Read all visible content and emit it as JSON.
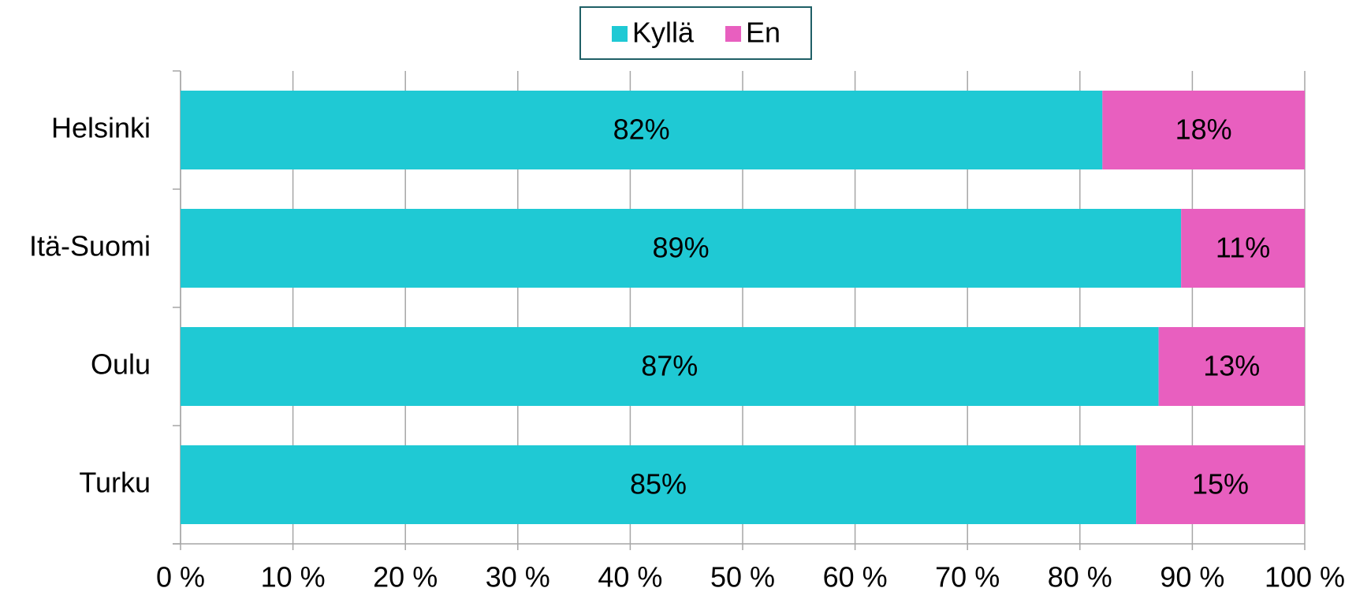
{
  "chart_data": {
    "type": "stacked_bar_horizontal",
    "categories": [
      "Helsinki",
      "Itä-Suomi",
      "Oulu",
      "Turku"
    ],
    "series": [
      {
        "name": "Kyllä",
        "color": "#1fc9d4",
        "values": [
          82,
          89,
          87,
          85
        ],
        "value_labels": [
          "82%",
          "89%",
          "87%",
          "85%"
        ]
      },
      {
        "name": "En",
        "color": "#e85fbf",
        "values": [
          18,
          11,
          13,
          15
        ],
        "value_labels": [
          "18%",
          "11%",
          "13%",
          "15%"
        ]
      }
    ],
    "xlim": [
      0,
      100
    ],
    "xticks": [
      {
        "value": 0,
        "label": "0 %"
      },
      {
        "value": 10,
        "label": "10 %"
      },
      {
        "value": 20,
        "label": "20 %"
      },
      {
        "value": 30,
        "label": "30 %"
      },
      {
        "value": 40,
        "label": "40 %"
      },
      {
        "value": 50,
        "label": "50 %"
      },
      {
        "value": 60,
        "label": "60 %"
      },
      {
        "value": 70,
        "label": "70 %"
      },
      {
        "value": 80,
        "label": "80 %"
      },
      {
        "value": 90,
        "label": "90 %"
      },
      {
        "value": 100,
        "label": "100 %"
      }
    ],
    "grid": true,
    "legend": "top"
  }
}
